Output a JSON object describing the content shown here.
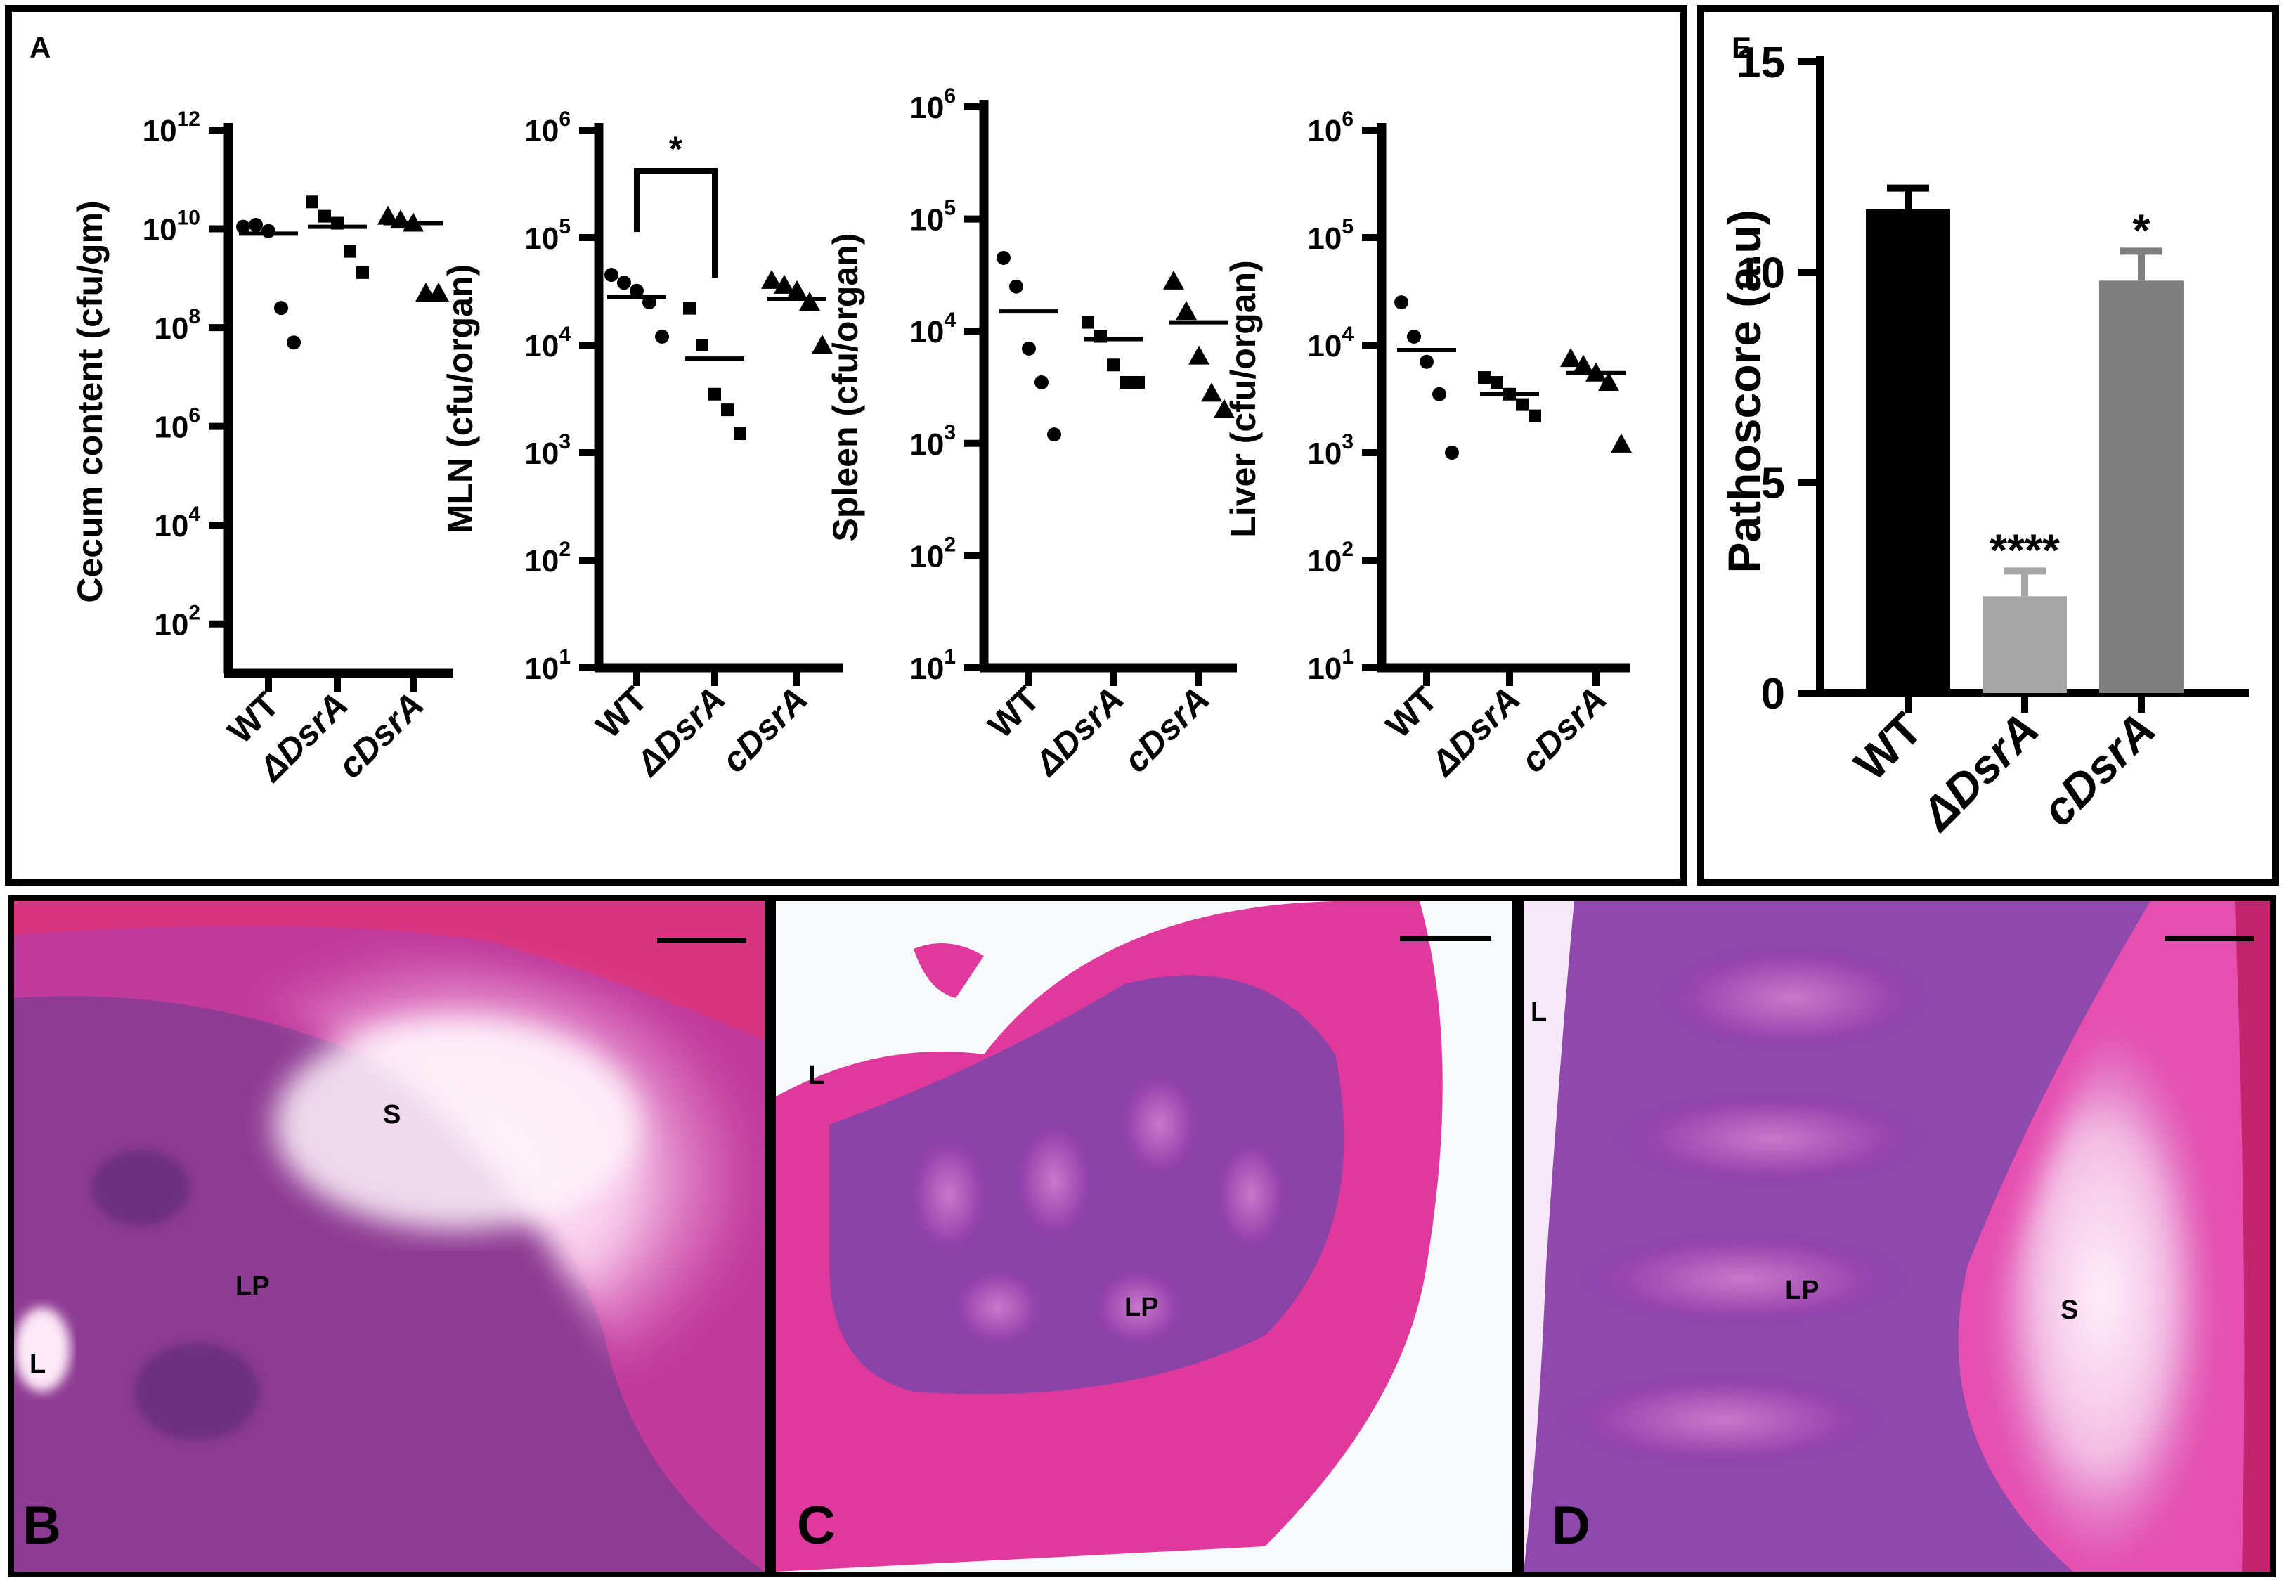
{
  "figure": {
    "panel_letters": [
      "A",
      "B",
      "C",
      "D",
      "E"
    ],
    "histology": {
      "B": [
        "S",
        "LP",
        "L"
      ],
      "C": [
        "L",
        "LP"
      ],
      "D": [
        "L",
        "LP",
        "S"
      ]
    }
  },
  "colors": {
    "wt_bar": "#000000",
    "dsra_bar": "#a6a6a6",
    "cdsra_bar": "#7f7f7f",
    "tissue_pink": "#e23fa8",
    "tissue_purple": "#8a3ba6"
  },
  "chart_data": [
    {
      "type": "scatter",
      "panel": "A",
      "ylabel": "Cecum content (cfu/gm)",
      "yscale": "log",
      "ylim_exp": [
        1,
        12
      ],
      "yticks_exp": [
        2,
        4,
        6,
        8,
        10,
        12
      ],
      "categories": [
        "WT",
        "ΔDsrA",
        "cDsrA"
      ],
      "markers": [
        "circle",
        "square",
        "triangle"
      ],
      "points": [
        [
          11000000000.0,
          12000000000.0,
          9000000000.0,
          250000000.0,
          50000000.0
        ],
        [
          35000000000.0,
          18000000000.0,
          13000000000.0,
          3500000000.0,
          1300000000.0
        ],
        [
          18000000000.0,
          15000000000.0,
          13000000000.0,
          500000000.0,
          500000000.0
        ]
      ],
      "means": [
        8000000000.0,
        11000000000.0,
        13000000000.0
      ],
      "significance": []
    },
    {
      "type": "scatter",
      "panel": "A",
      "ylabel": "MLN (cfu/organ)",
      "yscale": "log",
      "ylim_exp": [
        1,
        6
      ],
      "yticks_exp": [
        1,
        2,
        3,
        4,
        5,
        6
      ],
      "categories": [
        "WT",
        "ΔDsrA",
        "cDsrA"
      ],
      "markers": [
        "circle",
        "square",
        "triangle"
      ],
      "points": [
        [
          45000,
          38000,
          32000,
          25000,
          12000
        ],
        [
          22000,
          10000,
          3500,
          2500,
          1500
        ],
        [
          40000,
          36000,
          32000,
          25000,
          10000
        ]
      ],
      "means": [
        28000,
        7500,
        27000
      ],
      "significance": [
        {
          "label": "*",
          "from": 0,
          "to": 1
        }
      ]
    },
    {
      "type": "scatter",
      "panel": "A",
      "ylabel": "Spleen (cfu/organ)",
      "yscale": "log",
      "ylim_exp": [
        1,
        6
      ],
      "yticks_exp": [
        1,
        2,
        3,
        4,
        5,
        6
      ],
      "categories": [
        "WT",
        "ΔDsrA",
        "cDsrA"
      ],
      "markers": [
        "circle",
        "square",
        "triangle"
      ],
      "points": [
        [
          45000,
          25000,
          7000,
          3500,
          1200
        ],
        [
          12000,
          9000,
          5000,
          3500,
          3500
        ],
        [
          28000,
          15000,
          6000,
          2800,
          2000
        ]
      ],
      "means": [
        15000,
        8500,
        12000
      ],
      "significance": []
    },
    {
      "type": "scatter",
      "panel": "A",
      "ylabel": "Liver (cfu/organ)",
      "yscale": "log",
      "ylim_exp": [
        1,
        6
      ],
      "yticks_exp": [
        1,
        2,
        3,
        4,
        5,
        6
      ],
      "categories": [
        "WT",
        "ΔDsrA",
        "cDsrA"
      ],
      "markers": [
        "circle",
        "square",
        "triangle"
      ],
      "points": [
        [
          25000,
          12000,
          7000,
          3500,
          1000
        ],
        [
          5000,
          4500,
          3500,
          2800,
          2200
        ],
        [
          7500,
          6500,
          5500,
          4500,
          1200
        ]
      ],
      "means": [
        9000,
        3500,
        5500
      ],
      "significance": []
    },
    {
      "type": "bar",
      "panel": "E",
      "ylabel": "Pathoscore (a.u)",
      "ylim": [
        0,
        15
      ],
      "yticks": [
        0,
        5,
        10,
        15
      ],
      "categories": [
        "WT",
        "ΔDsrA",
        "cDsrA"
      ],
      "values": [
        11.5,
        2.3,
        9.8
      ],
      "errors": [
        0.5,
        0.6,
        0.7
      ],
      "significance": [
        "",
        "****",
        "*"
      ]
    }
  ]
}
